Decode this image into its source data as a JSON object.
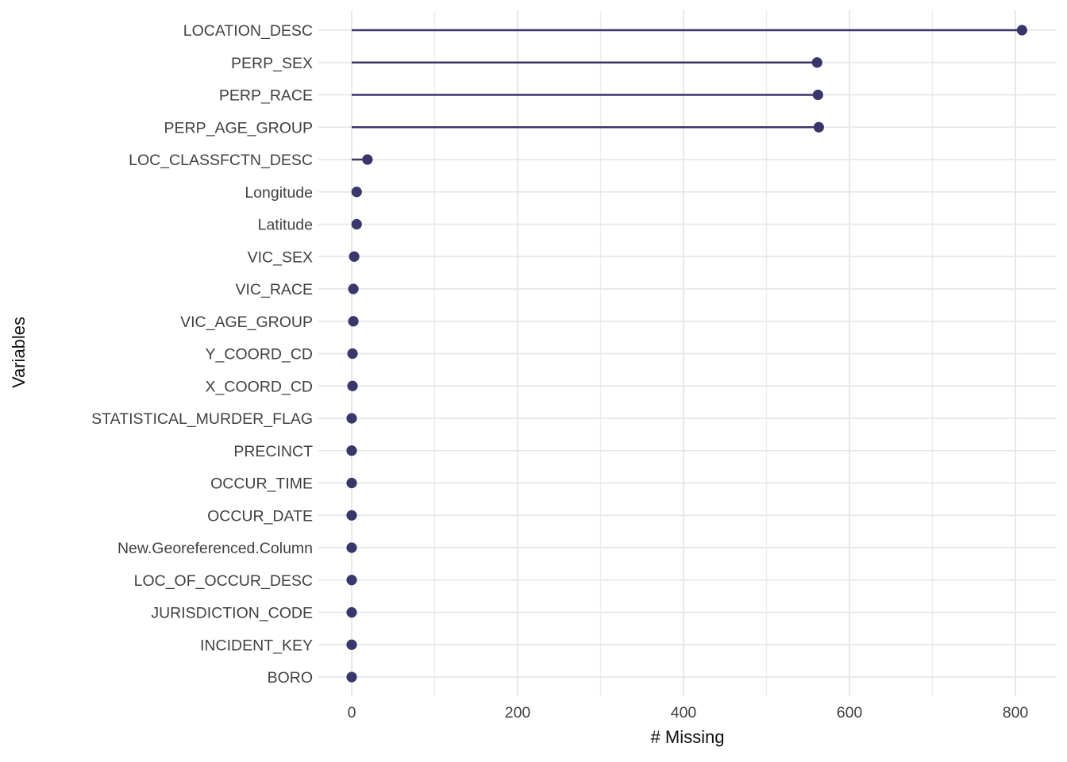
{
  "chart_data": {
    "type": "bar",
    "variant": "lollipop",
    "orientation": "horizontal",
    "title": "",
    "xlabel": "# Missing",
    "ylabel": "Variables",
    "categories": [
      "LOCATION_DESC",
      "PERP_SEX",
      "PERP_RACE",
      "PERP_AGE_GROUP",
      "LOC_CLASSFCTN_DESC",
      "Longitude",
      "Latitude",
      "VIC_SEX",
      "VIC_RACE",
      "VIC_AGE_GROUP",
      "Y_COORD_CD",
      "X_COORD_CD",
      "STATISTICAL_MURDER_FLAG",
      "PRECINCT",
      "OCCUR_TIME",
      "OCCUR_DATE",
      "New.Georeferenced.Column",
      "LOC_OF_OCCUR_DESC",
      "JURISDICTION_CODE",
      "INCIDENT_KEY",
      "BORO"
    ],
    "values": [
      808,
      561,
      562,
      563,
      19,
      6,
      6,
      3,
      2,
      2,
      1,
      1,
      0,
      0,
      0,
      0,
      0,
      0,
      0,
      0,
      0
    ],
    "xlim": [
      -41,
      851
    ],
    "x_ticks": [
      0,
      200,
      400,
      600,
      800
    ],
    "x_minor_ticks": [
      100,
      300,
      500,
      700
    ],
    "grid": true,
    "legend": "none",
    "colors": {
      "lollipop": "#3a356b",
      "gridline_major": "#e7e7e7",
      "gridline_minor": "#ededed",
      "axis_text": "#414141",
      "axis_title": "#111111",
      "background": "#ffffff"
    }
  }
}
